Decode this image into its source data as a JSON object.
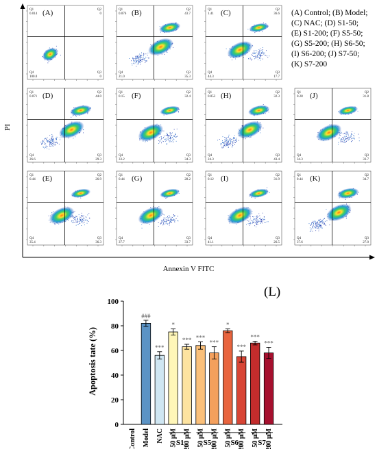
{
  "legend_text": [
    "(A) Control; (B) Model;",
    "(C) NAC; (D) S1-50;",
    "(E) S1-200; (F) S5-50;",
    "(G) S5-200; (H) S6-50;",
    "(I) S6-200; (J) S7-50;",
    "(K) S7-200"
  ],
  "flow_axes": {
    "ylabel": "PI",
    "xlabel": "Annexin V FITC"
  },
  "flow_panels": [
    {
      "letter": "(A)",
      "q1": "0.014",
      "q2": "0",
      "q3": "0",
      "q4": "100.0",
      "pattern": "control"
    },
    {
      "letter": "(B)",
      "q1": "0.076",
      "q2": "43.7",
      "q3": "35.3",
      "q4": "21.0",
      "pattern": "model"
    },
    {
      "letter": "(C)",
      "q1": "1.41",
      "q2": "36.6",
      "q3": "17.7",
      "q4": "44.3",
      "pattern": "treated"
    },
    {
      "letter": "(D)",
      "q1": "0.071",
      "q2": "44.0",
      "q3": "29.3",
      "q4": "26.6",
      "pattern": "model"
    },
    {
      "letter": "(F)",
      "q1": "0.15",
      "q2": "32.4",
      "q3": "34.3",
      "q4": "33.2",
      "pattern": "treated"
    },
    {
      "letter": "(H)",
      "q1": "0.053",
      "q2": "32.3",
      "q3": "43.4",
      "q4": "24.3",
      "pattern": "model"
    },
    {
      "letter": "(J)",
      "q1": "0.28",
      "q2": "31.8",
      "q3": "33.7",
      "q4": "34.3",
      "pattern": "treated"
    },
    {
      "letter": "(E)",
      "q1": "0.44",
      "q2": "26.9",
      "q3": "36.3",
      "q4": "35.4",
      "pattern": "treated"
    },
    {
      "letter": "(G)",
      "q1": "0.44",
      "q2": "28.2",
      "q3": "33.7",
      "q4": "37.7",
      "pattern": "treated"
    },
    {
      "letter": "(I)",
      "q1": "0.12",
      "q2": "31.9",
      "q3": "26.5",
      "q4": "41.1",
      "pattern": "treated"
    },
    {
      "letter": "(K)",
      "q1": "0.44",
      "q2": "34.7",
      "q3": "27.0",
      "q4": "37.6",
      "pattern": "model"
    }
  ],
  "chart_data": {
    "type": "bar",
    "panel_label": "(L)",
    "ylabel": "Apoptosis tate (%)",
    "ylim": [
      0,
      100
    ],
    "yticks": [
      0,
      20,
      40,
      60,
      80,
      100
    ],
    "categories": [
      "Control",
      "Model",
      "NAC",
      "50 μM",
      "200 μM",
      "50 μM",
      "200 μM",
      "50 μM",
      "200 μM",
      "50 μM",
      "200 μM"
    ],
    "values": [
      0,
      82,
      56,
      75,
      63,
      64,
      58,
      76,
      55,
      66,
      58
    ],
    "errors": [
      0,
      2.5,
      3,
      2.5,
      2,
      3,
      5,
      1.5,
      4.5,
      1.5,
      4.5
    ],
    "significance": [
      "",
      "###",
      "***",
      "*",
      "***",
      "***",
      "***",
      "*",
      "***",
      "***",
      "***"
    ],
    "colors": [
      "#4a86b8",
      "#5b93c5",
      "#cfe6f2",
      "#fff6b8",
      "#fde3a0",
      "#fbc07a",
      "#f4a05d",
      "#e8643e",
      "#d84535",
      "#c32c2c",
      "#a6102e"
    ],
    "groups": [
      {
        "label": "S1",
        "from": 3,
        "to": 4
      },
      {
        "label": "S5",
        "from": 5,
        "to": 6
      },
      {
        "label": "S6",
        "from": 7,
        "to": 8
      },
      {
        "label": "S7",
        "from": 9,
        "to": 10
      }
    ]
  }
}
